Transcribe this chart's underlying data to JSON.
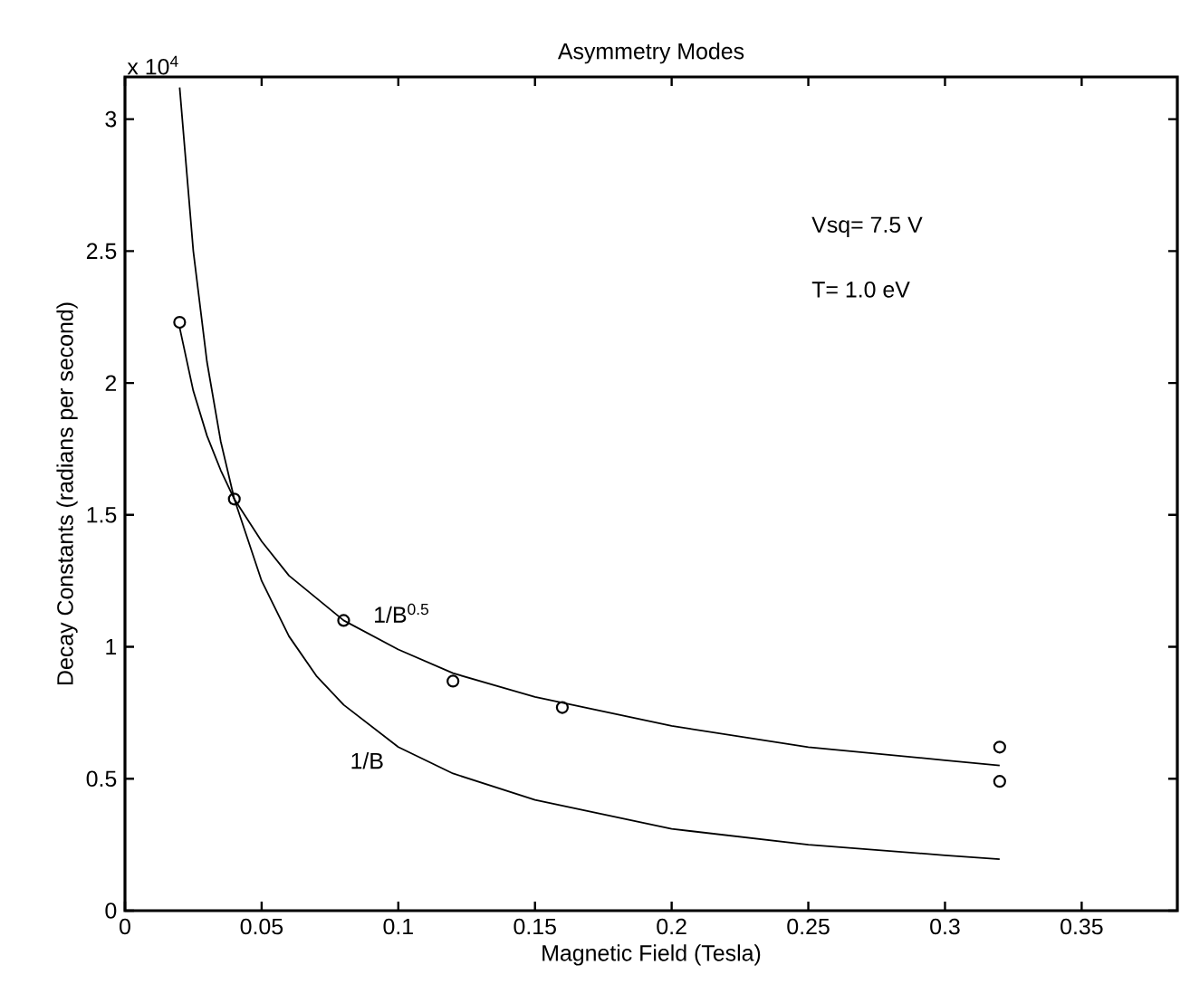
{
  "chart_data": {
    "type": "line",
    "title": "Asymmetry Modes",
    "xlabel": "Magnetic Field (Tesla)",
    "ylabel": "Decay Constants (radians per second)",
    "xlim": [
      0,
      0.385
    ],
    "ylim": [
      0,
      3.16
    ],
    "xticks": [
      0,
      0.05,
      0.1,
      0.15,
      0.2,
      0.25,
      0.3,
      0.35
    ],
    "yticks": [
      0,
      0.5,
      1,
      1.5,
      2,
      2.5,
      3
    ],
    "grid": false,
    "line_style": "solid",
    "series": [
      {
        "color": "#000000",
        "x": [
          0.02,
          0.025,
          0.03,
          0.035,
          0.04,
          0.05,
          0.06,
          0.07,
          0.08,
          0.1,
          0.12,
          0.15,
          0.2,
          0.25,
          0.3,
          0.32
        ],
        "values": [
          3.12,
          2.5,
          2.08,
          1.78,
          1.56,
          1.25,
          1.04,
          0.89,
          0.78,
          0.62,
          0.52,
          0.42,
          0.31,
          0.25,
          0.21,
          0.195
        ]
      },
      {
        "color": "#000000",
        "x": [
          0.02,
          0.025,
          0.03,
          0.035,
          0.04,
          0.05,
          0.06,
          0.08,
          0.1,
          0.12,
          0.15,
          0.2,
          0.25,
          0.3,
          0.32
        ],
        "values": [
          2.21,
          1.97,
          1.8,
          1.67,
          1.56,
          1.4,
          1.27,
          1.1,
          0.99,
          0.9,
          0.81,
          0.7,
          0.62,
          0.57,
          0.55
        ]
      },
      {
        "type": "scatter",
        "marker": "circle",
        "color": "#000000",
        "x": [
          0.02,
          0.04,
          0.08,
          0.12,
          0.16,
          0.32,
          0.32
        ],
        "values": [
          2.23,
          1.56,
          1.1,
          0.87,
          0.77,
          0.62,
          0.49
        ]
      }
    ],
    "annotations": [
      "x 10$^{4}$",
      "Vsq= 7.5 V",
      "T= 1.0 eV",
      {
        "text": "1/B$^{0.5}$",
        "x": 0.08,
        "y": 1.1
      },
      "1/B"
    ]
  }
}
